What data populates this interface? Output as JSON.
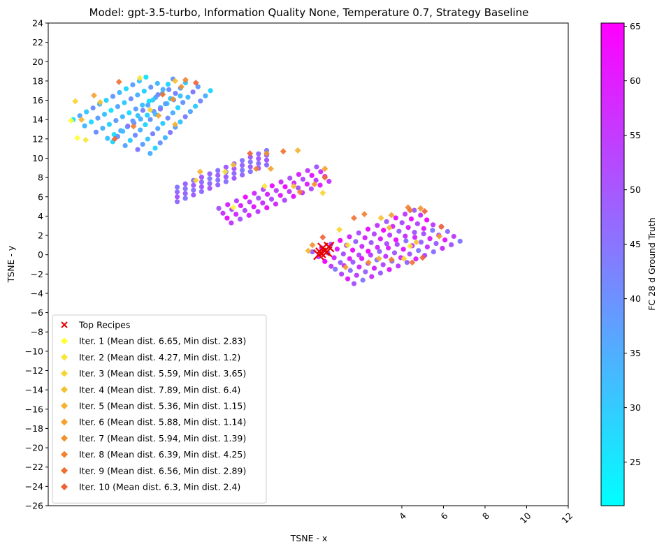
{
  "chart_data": {
    "type": "scatter",
    "title": "Model: gpt-3.5-turbo, Information Quality None, Temperature 0.7, Strategy Baseline",
    "xlabel": "TSNE - x",
    "ylabel": "TSNE - y",
    "xlim": [
      -13,
      12
    ],
    "ylim": [
      -26,
      24
    ],
    "x_ticks": [
      4,
      6,
      8,
      10,
      12
    ],
    "y_ticks": [
      -26,
      -24,
      -22,
      -20,
      -18,
      -16,
      -14,
      -12,
      -10,
      -8,
      -6,
      -4,
      -2,
      0,
      2,
      4,
      6,
      8,
      10,
      12,
      14,
      16,
      18,
      20,
      22,
      24
    ],
    "grid": false,
    "legend_position": "lower-left",
    "colorbar": {
      "label": "FC 28 d Ground Truth",
      "range": [
        21,
        65.3
      ],
      "ticks": [
        25,
        30,
        35,
        40,
        45,
        50,
        55,
        60,
        65
      ],
      "colormap": "cool",
      "colors": [
        "#00ffff",
        "#ff00ff"
      ]
    },
    "legend": [
      {
        "label": "Top Recipes",
        "marker": "x",
        "color": "#e60000"
      },
      {
        "label": "Iter. 1 (Mean dist. 6.65, Min dist. 2.83)",
        "marker": "diamond",
        "color": "#ffff33"
      },
      {
        "label": "Iter. 2 (Mean dist. 4.27, Min dist. 1.2)",
        "marker": "diamond",
        "color": "#f9e536"
      },
      {
        "label": "Iter. 3 (Mean dist. 5.59, Min dist. 3.65)",
        "marker": "diamond",
        "color": "#f7d531"
      },
      {
        "label": "Iter. 4 (Mean dist. 7.89, Min dist. 6.4)",
        "marker": "diamond",
        "color": "#f6c12f"
      },
      {
        "label": "Iter. 5 (Mean dist. 5.36, Min dist. 1.15)",
        "marker": "diamond",
        "color": "#f5b12c"
      },
      {
        "label": "Iter. 6 (Mean dist. 5.88, Min dist. 1.14)",
        "marker": "diamond",
        "color": "#f4a12c"
      },
      {
        "label": "Iter. 7 (Mean dist. 5.94, Min dist. 1.39)",
        "marker": "diamond",
        "color": "#f3902c"
      },
      {
        "label": "Iter. 8 (Mean dist. 6.39, Min dist. 4.25)",
        "marker": "diamond",
        "color": "#f2802c"
      },
      {
        "label": "Iter. 9 (Mean dist. 6.56, Min dist. 2.89)",
        "marker": "diamond",
        "color": "#f1702f"
      },
      {
        "label": "Iter. 10 (Mean dist. 6.3, Min dist. 2.4)",
        "marker": "diamond",
        "color": "#f06033"
      }
    ],
    "clusters": [
      {
        "x0": -11.8,
        "y0": 14.0,
        "x1": -8.3,
        "y1": 18.4,
        "rows": 4,
        "n": 12,
        "shift_x": 0.55,
        "shift_y": -0.65,
        "c0": 26,
        "c1": 40
      },
      {
        "x0": -9.9,
        "y0": 11.7,
        "x1": -7.0,
        "y1": 18.2,
        "rows": 4,
        "n": 13,
        "shift_x": 0.6,
        "shift_y": -0.4,
        "c0": 28,
        "c1": 44
      },
      {
        "x0": -6.8,
        "y0": 7.0,
        "x1": -2.5,
        "y1": 10.8,
        "rows": 4,
        "n": 12,
        "shift_x": 0.0,
        "shift_y": -0.5,
        "c0": 44,
        "c1": 50
      },
      {
        "x0": -4.8,
        "y0": 4.8,
        "x1": -0.1,
        "y1": 9.1,
        "rows": 4,
        "n": 12,
        "shift_x": 0.2,
        "shift_y": -0.5,
        "c0": 50,
        "c1": 62
      },
      {
        "x0": -0.3,
        "y0": 0.3,
        "x1": 4.6,
        "y1": 4.6,
        "rows": 4,
        "n": 12,
        "shift_x": 0.3,
        "shift_y": -0.5,
        "c0": 48,
        "c1": 63
      },
      {
        "x0": 0.8,
        "y0": -1.5,
        "x1": 5.9,
        "y1": 2.9,
        "rows": 4,
        "n": 13,
        "shift_x": 0.3,
        "shift_y": -0.5,
        "c0": 44,
        "c1": 60
      }
    ],
    "iteration_points": [
      {
        "x": -11.6,
        "y": 12.1,
        "iter": 1
      },
      {
        "x": -11.2,
        "y": 11.9,
        "iter": 2
      },
      {
        "x": -11.9,
        "y": 13.9,
        "iter": 1
      },
      {
        "x": -11.4,
        "y": 14.0,
        "iter": 5
      },
      {
        "x": -10.8,
        "y": 16.5,
        "iter": 6
      },
      {
        "x": -11.7,
        "y": 15.9,
        "iter": 3
      },
      {
        "x": -9.6,
        "y": 17.9,
        "iter": 9
      },
      {
        "x": -8.6,
        "y": 18.3,
        "iter": 2
      },
      {
        "x": -10.5,
        "y": 15.8,
        "iter": 4
      },
      {
        "x": -6.9,
        "y": 18.0,
        "iter": 4
      },
      {
        "x": -6.4,
        "y": 18.1,
        "iter": 8
      },
      {
        "x": -5.9,
        "y": 17.8,
        "iter": 10
      },
      {
        "x": -7.7,
        "y": 14.4,
        "iter": 6
      },
      {
        "x": -8.1,
        "y": 15.0,
        "iter": 3
      },
      {
        "x": -7.0,
        "y": 16.1,
        "iter": 7
      },
      {
        "x": -9.8,
        "y": 12.0,
        "iter": 10
      },
      {
        "x": -8.9,
        "y": 13.3,
        "iter": 8
      },
      {
        "x": -7.5,
        "y": 16.6,
        "iter": 9
      },
      {
        "x": -6.9,
        "y": 13.5,
        "iter": 5
      },
      {
        "x": -6.6,
        "y": 17.4,
        "iter": 7
      },
      {
        "x": -4.1,
        "y": 9.3,
        "iter": 4
      },
      {
        "x": -3.0,
        "y": 8.9,
        "iter": 8
      },
      {
        "x": -2.3,
        "y": 8.9,
        "iter": 6
      },
      {
        "x": -5.7,
        "y": 8.6,
        "iter": 5
      },
      {
        "x": -5.9,
        "y": 7.7,
        "iter": 3
      },
      {
        "x": -2.5,
        "y": 10.5,
        "iter": 7
      },
      {
        "x": -1.7,
        "y": 10.7,
        "iter": 9
      },
      {
        "x": -1.0,
        "y": 10.8,
        "iter": 5
      },
      {
        "x": -3.3,
        "y": 10.5,
        "iter": 10
      },
      {
        "x": -4.5,
        "y": 8.6,
        "iter": 2
      },
      {
        "x": -1.2,
        "y": 7.1,
        "iter": 4
      },
      {
        "x": -0.9,
        "y": 6.5,
        "iter": 8
      },
      {
        "x": 0.3,
        "y": 8.0,
        "iter": 9
      },
      {
        "x": 0.3,
        "y": 8.9,
        "iter": 6
      },
      {
        "x": 0.2,
        "y": 6.4,
        "iter": 3
      },
      {
        "x": -4.1,
        "y": 4.9,
        "iter": 1
      },
      {
        "x": -2.6,
        "y": 7.1,
        "iter": 2
      },
      {
        "x": -0.2,
        "y": 7.3,
        "iter": 7
      },
      {
        "x": -0.5,
        "y": 0.4,
        "iter": 5
      },
      {
        "x": -0.3,
        "y": 1.0,
        "iter": 7
      },
      {
        "x": 0.2,
        "y": 1.8,
        "iter": 10
      },
      {
        "x": 1.7,
        "y": 3.8,
        "iter": 9
      },
      {
        "x": 2.2,
        "y": 4.2,
        "iter": 8
      },
      {
        "x": 3.0,
        "y": 3.8,
        "iter": 4
      },
      {
        "x": 3.5,
        "y": 4.1,
        "iter": 6
      },
      {
        "x": 4.3,
        "y": 4.9,
        "iter": 8
      },
      {
        "x": 4.4,
        "y": 4.6,
        "iter": 9
      },
      {
        "x": 4.9,
        "y": 4.8,
        "iter": 7
      },
      {
        "x": 5.1,
        "y": 4.5,
        "iter": 10
      },
      {
        "x": 1.0,
        "y": 2.6,
        "iter": 3
      },
      {
        "x": 3.4,
        "y": 2.8,
        "iter": 5
      },
      {
        "x": 1.4,
        "y": 1.0,
        "iter": 2
      },
      {
        "x": 1.3,
        "y": -1.3,
        "iter": 6
      },
      {
        "x": 2.4,
        "y": -0.8,
        "iter": 7
      },
      {
        "x": 2.9,
        "y": -0.4,
        "iter": 5
      },
      {
        "x": 3.5,
        "y": -0.5,
        "iter": 8
      },
      {
        "x": 4.1,
        "y": -0.4,
        "iter": 3
      },
      {
        "x": 4.5,
        "y": -0.8,
        "iter": 9
      },
      {
        "x": 4.7,
        "y": 1.3,
        "iter": 4
      },
      {
        "x": 5.0,
        "y": -0.3,
        "iter": 10
      },
      {
        "x": 5.9,
        "y": 2.9,
        "iter": 9
      },
      {
        "x": 5.8,
        "y": 1.9,
        "iter": 6
      },
      {
        "x": 4.4,
        "y": 0.9,
        "iter": 2
      }
    ],
    "top_recipes": [
      {
        "x": 0.0,
        "y": 0.0
      },
      {
        "x": 0.3,
        "y": 0.4
      },
      {
        "x": 0.2,
        "y": 0.7
      },
      {
        "x": 0.4,
        "y": 0.3
      },
      {
        "x": 0.5,
        "y": 0.8
      },
      {
        "x": 0.1,
        "y": 0.2
      }
    ]
  }
}
